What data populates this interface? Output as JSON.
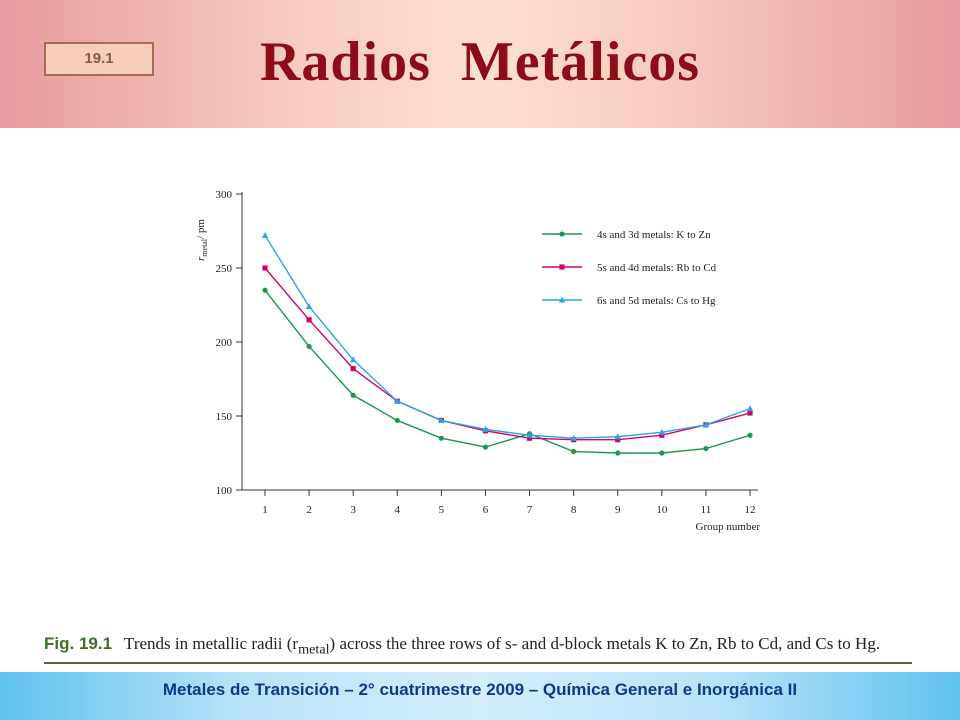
{
  "slide": {
    "badge": "19.1",
    "title": "Radios  Metálicos"
  },
  "caption": {
    "label": "Fig. 19.1",
    "text": "Trends in metallic radii (r",
    "sub": "metal",
    "text2": ") across the three rows of s- and d-block metals K to Zn, Rb to Cd, and Cs to Hg."
  },
  "footer": {
    "text": "Metales de Transición – 2° cuatrimestre 2009 – Química General e Inorgánica II"
  },
  "chart_data": {
    "type": "line",
    "xlabel": "Group number",
    "ylabel": "r",
    "ylabel_sub": "metal",
    "ylabel_unit": "/ pm",
    "xlim": [
      1,
      12
    ],
    "ylim": [
      100,
      300
    ],
    "x": [
      1,
      2,
      3,
      4,
      5,
      6,
      7,
      8,
      9,
      10,
      11,
      12
    ],
    "yticks": [
      100,
      150,
      200,
      250,
      300
    ],
    "grid": false,
    "legend_position": "top-right",
    "series": [
      {
        "name": "4s and 3d metals: K to Zn",
        "color": "#1a9850",
        "marker": "circle",
        "values": [
          235,
          197,
          164,
          147,
          135,
          129,
          138,
          126,
          125,
          125,
          128,
          137
        ]
      },
      {
        "name": "5s and 4d metals: Rb to Cd",
        "color": "#d6006e",
        "marker": "square",
        "values": [
          250,
          215,
          182,
          160,
          147,
          140,
          135,
          134,
          134,
          137,
          144,
          152
        ]
      },
      {
        "name": "6s and 5d metals: Cs to Hg",
        "color": "#29a8e0",
        "marker": "triangle",
        "values": [
          272,
          224,
          188,
          160,
          147,
          141,
          137,
          135,
          136,
          139,
          144,
          155
        ]
      }
    ]
  }
}
